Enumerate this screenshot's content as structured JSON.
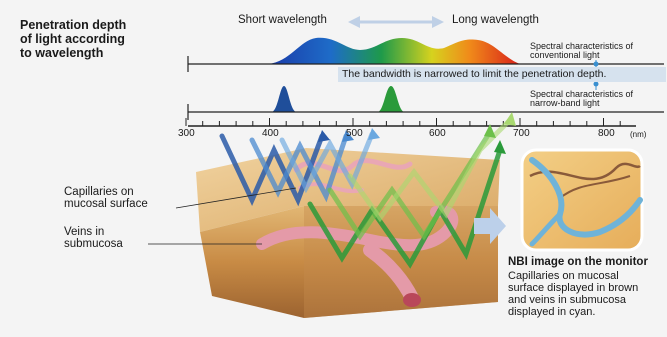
{
  "title_lines": [
    "Penetration depth",
    "of light according",
    "to wavelength"
  ],
  "short_wavelength": "Short wavelength",
  "long_wavelength": "Long wavelength",
  "conventional_label": [
    "Spectral characteristics of",
    "conventional light"
  ],
  "bandwidth_note": "The bandwidth is narrowed to limit the penetration depth.",
  "narrowband_label": [
    "Spectral characteristics of",
    "narrow-band light"
  ],
  "axis": {
    "ticks": [
      "300",
      "400",
      "500",
      "600",
      "700",
      "800"
    ],
    "unit": "(nm)"
  },
  "capillaries_label": [
    "Capillaries on",
    "mucosal surface"
  ],
  "veins_label": [
    "Veins in",
    "submucosa"
  ],
  "nbi_title": "NBI image on the monitor",
  "nbi_desc": [
    "Capillaries on mucosal",
    "surface displayed in brown",
    "and veins in submucosa",
    "displayed in cyan."
  ],
  "colors": {
    "blue": "#1f4e9a",
    "green": "#2a9a3a",
    "capillary": "#8a5a3a",
    "vein": "#6fb3d8",
    "note_band": "#d6e2ee"
  }
}
